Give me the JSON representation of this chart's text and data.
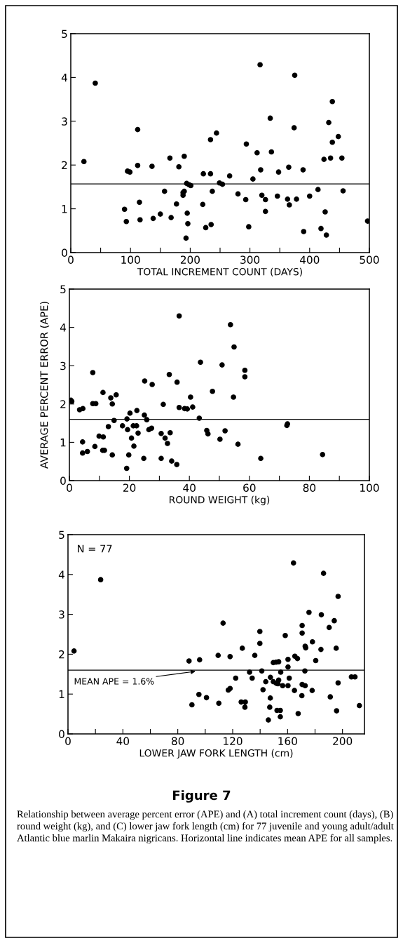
{
  "chart_data": [
    {
      "type": "scatter",
      "xlabel": "TOTAL INCREMENT COUNT (DAYS)",
      "xlim": [
        0,
        500
      ],
      "ylim": [
        0,
        5
      ],
      "xticks": [
        0,
        {
          "value": 50,
          "label": null
        },
        100,
        {
          "value": 150,
          "label": null
        },
        200,
        {
          "value": 250,
          "label": null
        },
        300,
        {
          "value": 350,
          "label": null
        },
        400,
        {
          "value": 450,
          "label": null
        },
        500
      ],
      "yticks": [
        0,
        1,
        2,
        3,
        4,
        5
      ],
      "marker": "circle",
      "grid": false,
      "ref_lines": [
        {
          "axis": "y",
          "value": 1.57,
          "color": "#000000"
        }
      ],
      "series": [
        {
          "color": "#000000",
          "x": [
            22,
            41,
            90,
            93,
            95,
            99,
            112,
            112,
            115,
            116,
            136,
            138,
            150,
            157,
            166,
            168,
            177,
            181,
            190,
            188,
            190,
            188,
            194,
            198,
            201,
            195,
            196,
            193,
            221,
            222,
            226,
            234,
            234,
            235,
            237,
            244,
            249,
            254,
            266,
            280,
            293,
            294,
            298,
            305,
            312,
            317,
            318,
            320,
            326,
            326,
            334,
            336,
            346,
            348,
            363,
            365,
            366,
            374,
            375,
            378,
            389,
            390,
            400,
            414,
            419,
            424,
            426,
            428,
            432,
            435,
            438,
            438,
            448,
            454,
            456,
            497
          ],
          "values": [
            2.08,
            3.87,
            0.99,
            0.71,
            1.86,
            1.84,
            2.81,
            1.99,
            1.15,
            0.75,
            1.97,
            0.78,
            0.88,
            1.4,
            2.16,
            0.8,
            1.11,
            1.96,
            2.2,
            1.37,
            1.4,
            1.31,
            1.58,
            1.55,
            1.53,
            0.9,
            0.66,
            0.33,
            1.1,
            1.8,
            0.57,
            2.58,
            1.8,
            0.64,
            1.4,
            2.73,
            1.59,
            1.56,
            1.75,
            1.34,
            1.21,
            2.48,
            0.59,
            1.68,
            2.28,
            4.29,
            1.89,
            1.31,
            1.21,
            0.94,
            3.07,
            2.3,
            1.29,
            1.84,
            1.22,
            1.95,
            1.09,
            2.85,
            4.05,
            1.22,
            1.89,
            0.48,
            1.29,
            1.44,
            0.55,
            2.13,
            0.93,
            0.4,
            2.97,
            2.16,
            3.45,
            2.52,
            2.65,
            2.16,
            1.41,
            0.72
          ]
        }
      ]
    },
    {
      "type": "scatter",
      "xlabel": "ROUND WEIGHT (kg)",
      "ylabel": "AVERAGE PERCENT ERROR (APE)",
      "xlim": [
        0,
        100
      ],
      "ylim": [
        0,
        5
      ],
      "xticks": [
        0,
        {
          "value": 10,
          "label": null
        },
        20,
        {
          "value": 30,
          "label": null
        },
        40,
        {
          "value": 50,
          "label": null
        },
        60,
        {
          "value": 70,
          "label": null
        },
        80,
        {
          "value": 90,
          "label": null
        },
        100
      ],
      "yticks": [
        0,
        1,
        2,
        3,
        4,
        5
      ],
      "marker": "circle",
      "grid": false,
      "ref_lines": [
        {
          "axis": "y",
          "value": 1.6,
          "color": "#000000"
        }
      ],
      "series": [
        {
          "color": "#000000",
          "x": [
            0.5,
            0.8,
            3.4,
            4.5,
            4.4,
            4.4,
            6.0,
            7.8,
            7.8,
            8.8,
            8.5,
            9.9,
            11.3,
            11.1,
            11.7,
            11.2,
            13.0,
            13.8,
            14.3,
            14.3,
            14.9,
            15.6,
            17.7,
            19.2,
            19.4,
            19.1,
            19.8,
            20.2,
            20.7,
            21.5,
            21.3,
            22.4,
            22.5,
            22.9,
            24.8,
            25.0,
            25.1,
            25.8,
            26.5,
            27.4,
            27.6,
            30.6,
            30.6,
            31.3,
            31.9,
            32.7,
            33.3,
            33.6,
            34.1,
            35.8,
            35.9,
            36.6,
            36.6,
            38.4,
            39.3,
            40.4,
            41.1,
            43.3,
            43.7,
            45.8,
            46.2,
            47.7,
            50.2,
            50.9,
            51.9,
            53.7,
            54.7,
            54.9,
            56.2,
            58.5,
            58.5,
            63.8,
            72.5,
            72.7,
            84.4
          ],
          "values": [
            2.1,
            2.07,
            1.85,
            1.88,
            1.01,
            0.72,
            0.76,
            2.82,
            2.01,
            2.01,
            0.89,
            1.16,
            1.14,
            0.79,
            0.79,
            2.3,
            1.41,
            2.16,
            2.0,
            0.67,
            1.57,
            2.24,
            1.43,
            1.61,
            1.33,
            0.32,
            0.67,
            1.76,
            1.11,
            0.9,
            1.43,
            1.43,
            1.83,
            1.24,
            0.58,
            1.71,
            2.6,
            1.59,
            1.33,
            1.37,
            2.51,
            1.23,
            0.58,
            1.99,
            1.11,
            0.97,
            2.77,
            1.25,
            0.51,
            0.42,
            2.57,
            4.3,
            1.91,
            1.88,
            1.87,
            2.18,
            1.92,
            1.63,
            3.09,
            1.31,
            1.22,
            2.33,
            1.08,
            3.02,
            1.3,
            4.07,
            2.18,
            3.49,
            0.95,
            2.88,
            2.71,
            0.58,
            1.44,
            1.48,
            0.68
          ]
        }
      ]
    },
    {
      "type": "scatter",
      "title": "Figure 7",
      "xlabel": "LOWER JAW FORK LENGTH (cm)",
      "xlim": [
        0,
        216
      ],
      "ylim": [
        0,
        5
      ],
      "xticks": [
        0,
        {
          "value": 20,
          "label": null
        },
        40,
        {
          "value": 60,
          "label": null
        },
        80,
        {
          "value": 100,
          "label": null
        },
        120,
        {
          "value": 140,
          "label": null
        },
        160,
        {
          "value": 180,
          "label": null
        },
        200
      ],
      "yticks": [
        0,
        1,
        2,
        3,
        4,
        5
      ],
      "marker": "circle",
      "grid": false,
      "ref_lines": [
        {
          "axis": "y",
          "value": 1.6,
          "label": "MEAN APE = 1.6%",
          "color": "#000000"
        }
      ],
      "annotations": [
        "N = 77",
        "Relationship between average percent error (APE) and (A) total increment count (days), (B) round weight (kg), and (C) lower jaw fork length (cm) for 77 juvenile and young adult/adult Atlantic blue marlin Makaira nigricans. Horizontal line indicates mean APE for all samples."
      ],
      "series": [
        {
          "color": "#000000",
          "x": [
            4.4,
            23.8,
            88.2,
            90.3,
            95.9,
            95.4,
            100.9,
            109.4,
            109.9,
            113.0,
            116.8,
            118.1,
            118.1,
            122.2,
            127.0,
            126.2,
            129.2,
            128.9,
            132.3,
            134.2,
            136.1,
            139.8,
            139.8,
            141.2,
            142.1,
            144.1,
            146.0,
            147.0,
            147.4,
            147.5,
            149.6,
            151.8,
            153.5,
            153.0,
            149.6,
            151.6,
            153.5,
            152.3,
            154.7,
            154.7,
            155.0,
            156.4,
            158.3,
            160.3,
            160.3,
            160.3,
            161.2,
            164.3,
            165.0,
            165.3,
            167.2,
            167.7,
            170.4,
            170.6,
            170.6,
            170.6,
            172.8,
            172.6,
            172.8,
            173.2,
            175.6,
            178.1,
            177.9,
            180.5,
            184.6,
            184.3,
            186.2,
            190.3,
            191.1,
            194.0,
            195.4,
            195.7,
            196.8,
            196.8,
            206.5,
            209.1,
            212.3
          ],
          "values": [
            2.08,
            3.87,
            1.83,
            0.73,
            1.86,
            0.99,
            0.91,
            1.97,
            0.77,
            2.78,
            1.1,
            1.14,
            1.94,
            1.4,
            2.15,
            0.8,
            0.8,
            0.67,
            1.55,
            1.4,
            1.97,
            2.57,
            2.27,
            1.58,
            1.11,
            1.31,
            0.35,
            0.67,
            0.9,
            1.42,
            1.31,
            1.27,
            1.35,
            1.26,
            1.79,
            1.8,
            1.81,
            0.59,
            0.59,
            0.43,
            1.55,
            1.21,
            2.47,
            1.87,
            1.68,
            1.21,
            1.4,
            4.29,
            1.09,
            1.95,
            1.89,
            0.51,
            0.96,
            2.72,
            2.53,
            1.24,
            1.21,
            1.58,
            2.2,
            2.16,
            3.05,
            2.31,
            1.09,
            1.84,
            2.99,
            2.12,
            4.03,
            2.67,
            0.93,
            2.84,
            2.15,
            0.58,
            3.45,
            1.28,
            1.43,
            1.43,
            0.71
          ]
        }
      ]
    }
  ]
}
